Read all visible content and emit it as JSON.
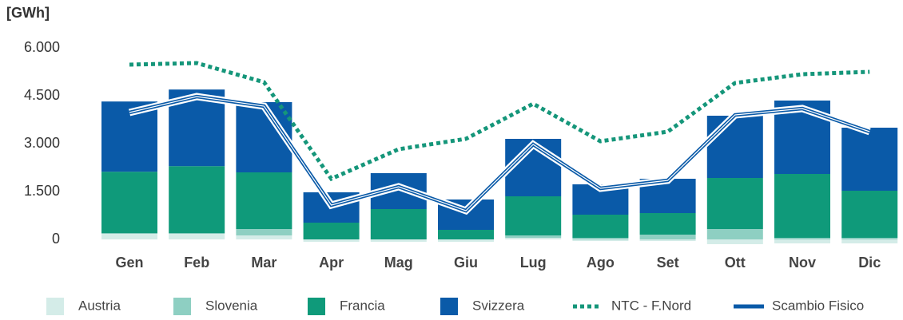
{
  "chart_data": {
    "type": "bar",
    "stacked": true,
    "y_label": "[GWh]",
    "categories": [
      "Gen",
      "Feb",
      "Mar",
      "Apr",
      "Mag",
      "Giu",
      "Lug",
      "Ago",
      "Set",
      "Ott",
      "Nov",
      "Dic"
    ],
    "ylim": [
      -250,
      6250
    ],
    "yticks": [
      0,
      {
        "value": 1500,
        "label": "1.500"
      },
      {
        "value": 3000,
        "label": "3.000"
      },
      {
        "value": 4500,
        "label": "4.500"
      },
      {
        "value": 6000,
        "label": "6.000"
      }
    ],
    "series": [
      {
        "name": "Austria",
        "color": "#d4ece8",
        "type": "bar",
        "values": [
          175,
          175,
          125,
          -75,
          -75,
          -75,
          50,
          -50,
          -50,
          -150,
          -125,
          -125
        ]
      },
      {
        "name": "Slovenia",
        "color": "#8ecfc2",
        "type": "bar",
        "values": [
          20,
          20,
          200,
          0,
          0,
          0,
          75,
          50,
          150,
          325,
          50,
          50
        ]
      },
      {
        "name": "Francia",
        "color": "#0f9a7a",
        "type": "bar",
        "values": [
          1925,
          2100,
          1775,
          525,
          950,
          300,
          1225,
          725,
          675,
          1600,
          2000,
          1475
        ]
      },
      {
        "name": "Svizzera",
        "color": "#0a5aa8",
        "type": "bar",
        "values": [
          2200,
          2400,
          2200,
          950,
          1125,
          950,
          1800,
          950,
          1075,
          1950,
          2300,
          1975
        ]
      },
      {
        "name": "NTC - F.Nord",
        "color": "#15967a",
        "type": "line",
        "style": "dotted",
        "values": [
          5475,
          5525,
          4925,
          1900,
          2825,
          3150,
          4250,
          3075,
          3375,
          4900,
          5175,
          5250
        ]
      },
      {
        "name": "Scambio Fisico",
        "color": "#0a5aa8",
        "type": "line",
        "style": "outlined",
        "values": [
          3975,
          4475,
          4175,
          1075,
          1650,
          900,
          2975,
          1600,
          1850,
          3900,
          4100,
          3375
        ]
      }
    ]
  }
}
